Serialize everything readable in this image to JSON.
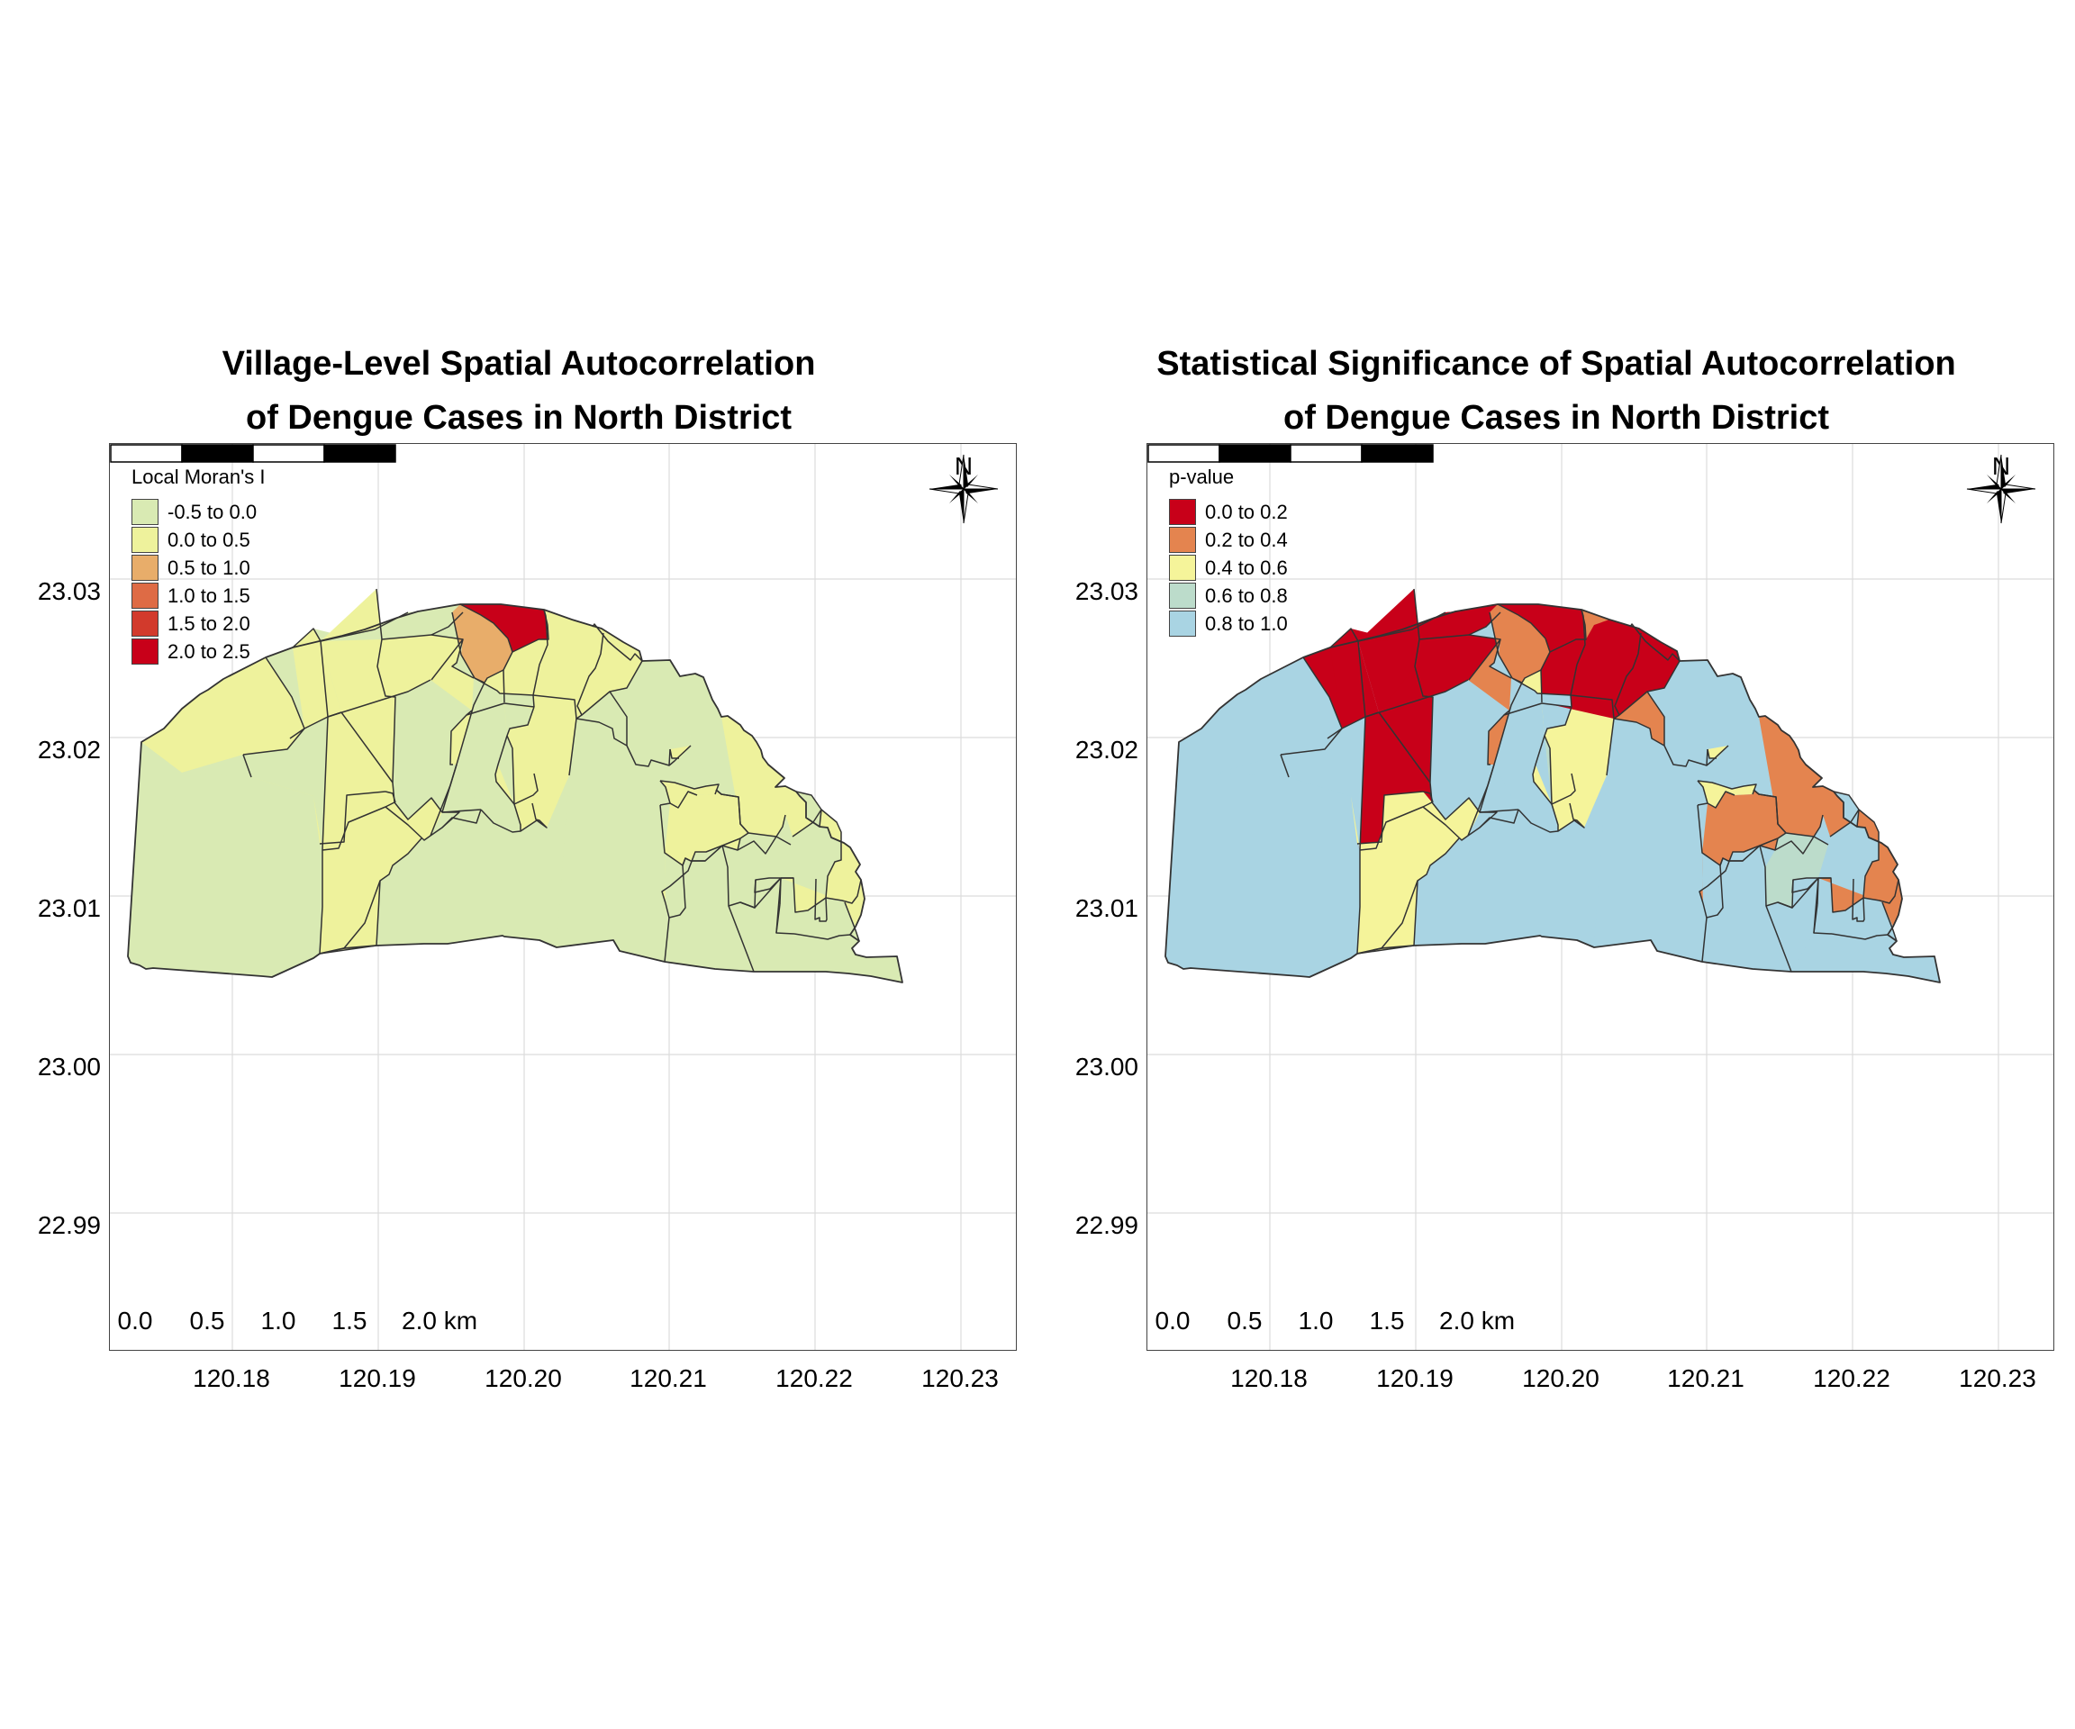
{
  "maps": [
    {
      "id": "left",
      "title_line1": "Village-Level Spatial Autocorrelation",
      "title_line2": "of Dengue Cases in North District",
      "legend_title": "Local Moran's I",
      "legend_items": [
        {
          "label": "-0.5 to 0.0",
          "color": "#d9eab3"
        },
        {
          "label": "0.0 to 0.5",
          "color": "#eef29c"
        },
        {
          "label": "0.5 to 1.0",
          "color": "#e8ad6a"
        },
        {
          "label": "1.0 to 1.5",
          "color": "#de6b45"
        },
        {
          "label": "1.5 to 2.0",
          "color": "#d23a2c"
        },
        {
          "label": "2.0 to 2.5",
          "color": "#c80019"
        }
      ],
      "region_colors": [
        "#d9eab3",
        "#eef29c",
        "#d9eab3",
        "#eef29c",
        "#d9eab3",
        "#eef29c",
        "#d9eab3",
        "#eef29c",
        "#e8ad6a",
        "#c80019",
        "#eef29c",
        "#d9eab3",
        "#d9eab3",
        "#eef29c",
        "#d9eab3",
        "#eef29c",
        "#eef29c",
        "#d9eab3",
        "#eef29c",
        "#d9eab3",
        "#d9eab3",
        "#eef29c",
        "#eef29c",
        "#d9eab3",
        "#d9eab3",
        "#d9eab3",
        "#eef29c",
        "#eef29c",
        "#eef29c",
        "#d9eab3",
        "#d9eab3",
        "#eef29c",
        "#d9eab3",
        "#d9eab3",
        "#d9eab3",
        "#eef29c",
        "#d9eab3",
        "#eef29c",
        "#d9eab3",
        "#eef29c",
        "#eef29c",
        "#d9eab3"
      ]
    },
    {
      "id": "right",
      "title_line1": "Statistical Significance of Spatial Autocorrelation",
      "title_line2": "of Dengue Cases in North District",
      "legend_title": "p-value",
      "legend_items": [
        {
          "label": "0.0 to 0.2",
          "color": "#c80019"
        },
        {
          "label": "0.2 to 0.4",
          "color": "#e4844f"
        },
        {
          "label": "0.4 to 0.6",
          "color": "#f5f49a"
        },
        {
          "label": "0.6 to 0.8",
          "color": "#bcdccb"
        },
        {
          "label": "0.8 to 1.0",
          "color": "#a9d4e3"
        }
      ],
      "region_colors": [
        "#a9d4e3",
        "#a9d4e3",
        "#c80019",
        "#c80019",
        "#c80019",
        "#c80019",
        "#c80019",
        "#c80019",
        "#e4844f",
        "#c80019",
        "#e4844f",
        "#a9d4e3",
        "#a9d4e3",
        "#e4844f",
        "#a9d4e3",
        "#f5f49a",
        "#f5f49a",
        "#a9d4e3",
        "#f5f49a",
        "#a9d4e3",
        "#bcdccb",
        "#f5f49a",
        "#c80019",
        "#a9d4e3",
        "#e4844f",
        "#a9d4e3",
        "#f5f49a",
        "#f5f49a",
        "#e4844f",
        "#a9d4e3",
        "#a9d4e3",
        "#e4844f",
        "#a9d4e3",
        "#bcdccb",
        "#a9d4e3",
        "#e4844f",
        "#a9d4e3",
        "#e4844f",
        "#a9d4e3",
        "#a9d4e3",
        "#f5f49a",
        "#a9d4e3"
      ]
    }
  ],
  "axes": {
    "y_ticks": [
      "23.03",
      "23.02",
      "23.01",
      "23.00",
      "22.99"
    ],
    "x_ticks": [
      "120.18",
      "120.19",
      "120.20",
      "120.21",
      "120.22",
      "120.23"
    ]
  },
  "scale_bar": {
    "labels": [
      "0.0",
      "0.5",
      "1.0",
      "1.5",
      "2.0 km"
    ]
  },
  "north_arrow": {
    "label": "N",
    "icon": "compass-rose-icon"
  }
}
